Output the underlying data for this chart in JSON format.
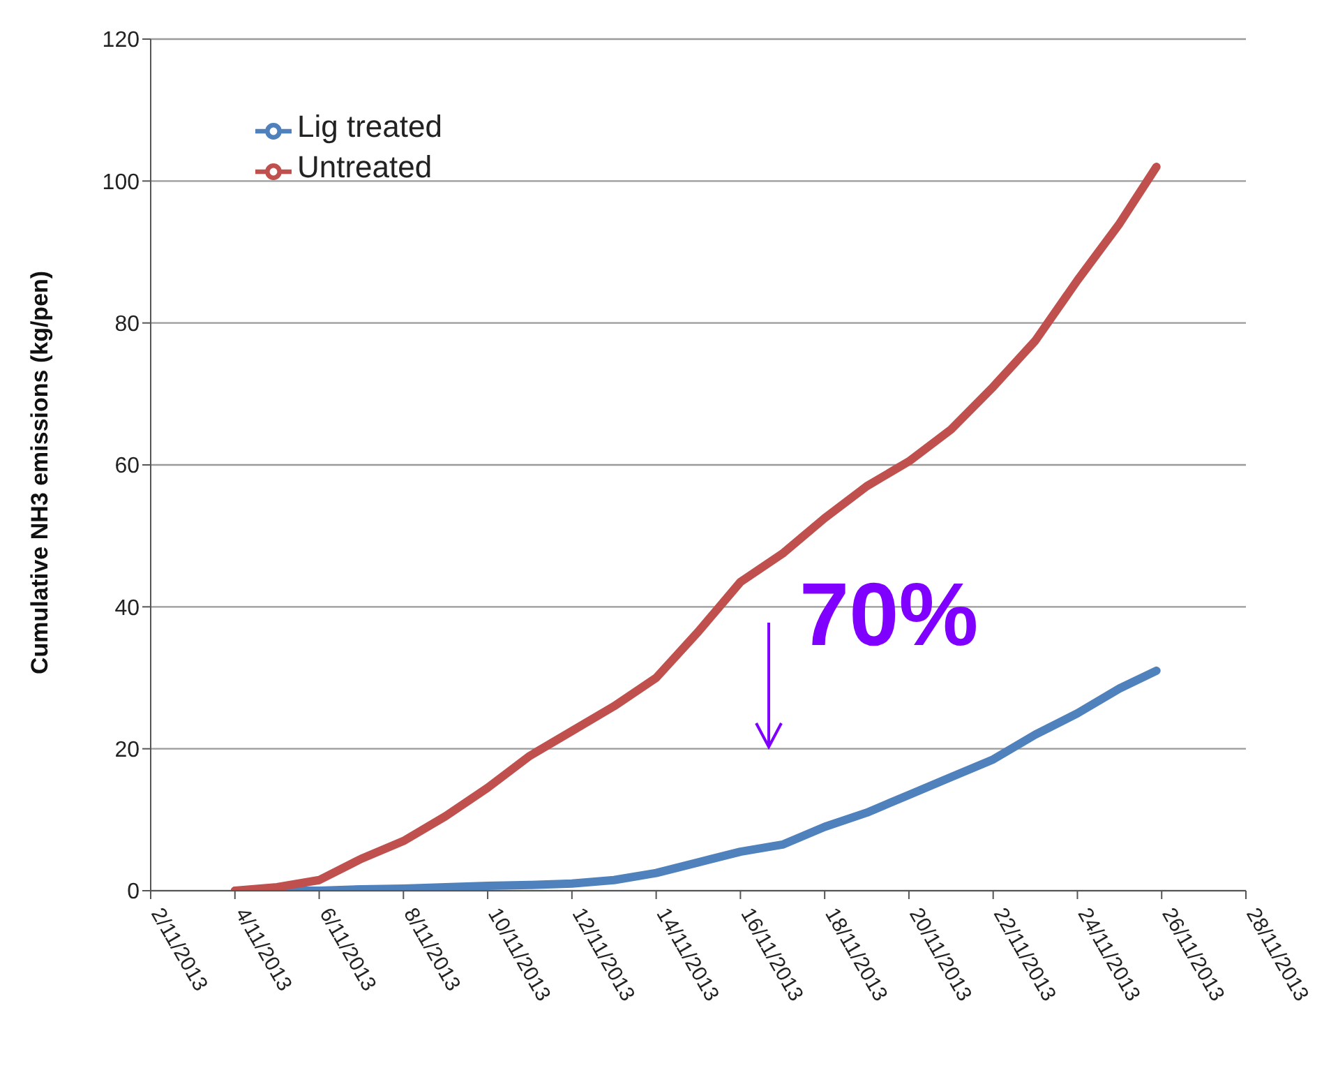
{
  "chart_data": {
    "type": "line",
    "ylabel": "Cumulative NH3 emissions  (kg/pen)",
    "x": [
      "2013-11-04",
      "2013-11-05",
      "2013-11-06",
      "2013-11-07",
      "2013-11-08",
      "2013-11-09",
      "2013-11-10",
      "2013-11-11",
      "2013-11-12",
      "2013-11-13",
      "2013-11-14",
      "2013-11-15",
      "2013-11-16",
      "2013-11-17",
      "2013-11-18",
      "2013-11-19",
      "2013-11-20",
      "2013-11-21",
      "2013-11-22",
      "2013-11-23",
      "2013-11-24",
      "2013-11-25",
      "2013-11-25T21:00"
    ],
    "series": [
      {
        "name": "Lig treated",
        "color": "#4f81bd",
        "values": [
          0,
          0,
          0,
          0.2,
          0.3,
          0.5,
          0.7,
          0.8,
          1,
          1.5,
          2.5,
          4,
          5.5,
          6.5,
          9,
          11,
          13.5,
          16,
          18.5,
          22,
          25,
          28.5,
          31
        ]
      },
      {
        "name": "Untreated",
        "color": "#c0504d",
        "values": [
          0,
          0.5,
          1.5,
          4.5,
          7,
          10.5,
          14.5,
          19,
          22.5,
          26,
          30,
          36.5,
          43.5,
          47.5,
          52.5,
          57,
          60.5,
          65,
          71,
          77.5,
          86,
          94,
          102
        ]
      }
    ],
    "xlim": [
      "2013-11-02",
      "2013-11-28"
    ],
    "xticks": [
      {
        "value": "2013-11-02",
        "label": "2/11/2013"
      },
      {
        "value": "2013-11-04",
        "label": "4/11/2013"
      },
      {
        "value": "2013-11-06",
        "label": "6/11/2013"
      },
      {
        "value": "2013-11-08",
        "label": "8/11/2013"
      },
      {
        "value": "2013-11-10",
        "label": "10/11/2013"
      },
      {
        "value": "2013-11-12",
        "label": "12/11/2013"
      },
      {
        "value": "2013-11-14",
        "label": "14/11/2013"
      },
      {
        "value": "2013-11-16",
        "label": "16/11/2013"
      },
      {
        "value": "2013-11-18",
        "label": "18/11/2013"
      },
      {
        "value": "2013-11-20",
        "label": "20/11/2013"
      },
      {
        "value": "2013-11-22",
        "label": "22/11/2013"
      },
      {
        "value": "2013-11-24",
        "label": "24/11/2013"
      },
      {
        "value": "2013-11-26",
        "label": "26/11/2013"
      },
      {
        "value": "2013-11-28",
        "label": "28/11/2013"
      }
    ],
    "ylim": [
      0,
      120
    ],
    "yticks": [
      0,
      20,
      40,
      60,
      80,
      100,
      120
    ],
    "grid": "y",
    "legend": "top left",
    "annotations": [
      "70%"
    ]
  }
}
